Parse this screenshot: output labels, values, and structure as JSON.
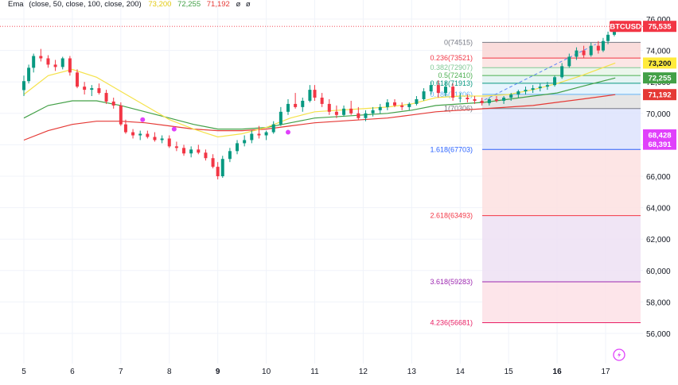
{
  "indicator": {
    "name": "Ema",
    "params": "(close, 50, close, 100, close, 200)",
    "v1": "73,200",
    "v2": "72,255",
    "v3": "71,192",
    "extra1": "ø",
    "extra2": "ø",
    "colors": {
      "ema50": "#f5e24b",
      "ema100": "#43a047",
      "ema200": "#e53935",
      "text": "#131722"
    }
  },
  "chart_data": {
    "type": "candlestick",
    "symbol": "BTCUSD",
    "y_ticks": [
      "76,000",
      "74,000",
      "72,000",
      "70,000",
      "68,000",
      "66,000",
      "64,000",
      "62,000",
      "60,000",
      "58,000",
      "56,000"
    ],
    "x_ticks": [
      "5",
      "6",
      "7",
      "8",
      "9",
      "10",
      "11",
      "12",
      "13",
      "14",
      "15",
      "16",
      "17"
    ],
    "bold_x_ticks": [
      "9",
      "16"
    ],
    "ylim": [
      55000,
      76500
    ],
    "price_tags": [
      {
        "label": "BTCUSD",
        "value": "75,535",
        "bg": "#f23645",
        "price": 75535
      },
      {
        "label": "",
        "value": "73,200",
        "bg": "#ffeb3b",
        "price": 73200,
        "dark": true
      },
      {
        "label": "",
        "value": "72,255",
        "bg": "#43a047",
        "price": 72255
      },
      {
        "label": "",
        "value": "71,192",
        "bg": "#e53935",
        "price": 71192
      },
      {
        "label": "",
        "value": "68,428",
        "bg": "#e040fb",
        "price": 68428
      },
      {
        "label": "",
        "value": "68,391",
        "bg": "#e040fb",
        "price": 68391
      }
    ],
    "fib_levels": [
      {
        "label": "0(74515)",
        "level": 0,
        "price": 74515,
        "color": "#787b86"
      },
      {
        "label": "0.236(73521)",
        "level": 0.236,
        "price": 73521,
        "color": "#f23645"
      },
      {
        "label": "0.382(72907)",
        "level": 0.382,
        "price": 72907,
        "color": "#81c995"
      },
      {
        "label": "0.5(72410)",
        "level": 0.5,
        "price": 72410,
        "color": "#4caf50"
      },
      {
        "label": "0.618(71913)",
        "level": 0.618,
        "price": 71913,
        "color": "#089981"
      },
      {
        "label": "0.786(71206)",
        "level": 0.786,
        "price": 71206,
        "color": "#64b5f6"
      },
      {
        "label": "1(70306)",
        "level": 1,
        "price": 70306,
        "color": "#787b86"
      },
      {
        "label": "1.618(67703)",
        "level": 1.618,
        "price": 67703,
        "color": "#2962ff"
      },
      {
        "label": "2.618(63493)",
        "level": 2.618,
        "price": 63493,
        "color": "#f23645"
      },
      {
        "label": "3.618(59283)",
        "level": 3.618,
        "price": 59283,
        "color": "#9c27b0"
      },
      {
        "label": "4.236(56681)",
        "level": 4.236,
        "price": 56681,
        "color": "#e91e63"
      }
    ],
    "candles": [
      [
        5.0,
        71480,
        72400,
        71100,
        72050
      ],
      [
        5.1,
        72050,
        73100,
        71900,
        72900
      ],
      [
        5.2,
        72900,
        73800,
        72600,
        73650
      ],
      [
        5.35,
        73650,
        74100,
        73300,
        73500
      ],
      [
        5.5,
        73500,
        73700,
        72900,
        73100
      ],
      [
        5.65,
        73100,
        73400,
        72700,
        72950
      ],
      [
        5.8,
        72950,
        73600,
        72800,
        73500
      ],
      [
        5.95,
        73500,
        73650,
        72400,
        72600
      ],
      [
        6.1,
        72600,
        72800,
        71600,
        71700
      ],
      [
        6.25,
        71700,
        72000,
        71200,
        71500
      ],
      [
        6.4,
        71500,
        71800,
        71100,
        71600
      ],
      [
        6.55,
        71600,
        71900,
        71200,
        71300
      ],
      [
        6.7,
        71300,
        71500,
        70600,
        70750
      ],
      [
        6.85,
        70750,
        71000,
        70300,
        70500
      ],
      [
        7.0,
        70500,
        70700,
        69200,
        69300
      ],
      [
        7.1,
        69300,
        69600,
        68700,
        68800
      ],
      [
        7.25,
        68800,
        69000,
        68400,
        68600
      ],
      [
        7.4,
        68600,
        68900,
        68300,
        68700
      ],
      [
        7.55,
        68700,
        68900,
        68400,
        68500
      ],
      [
        7.7,
        68500,
        68800,
        68200,
        68300
      ],
      [
        7.85,
        68300,
        68600,
        68100,
        68400
      ],
      [
        8.0,
        68400,
        68600,
        67800,
        67900
      ],
      [
        8.15,
        67900,
        68200,
        67600,
        67800
      ],
      [
        8.3,
        67800,
        68000,
        67300,
        67450
      ],
      [
        8.45,
        67450,
        67900,
        67200,
        67700
      ],
      [
        8.6,
        67700,
        68000,
        67400,
        67500
      ],
      [
        8.75,
        67500,
        67700,
        67000,
        67150
      ],
      [
        8.9,
        67150,
        67400,
        66500,
        66600
      ],
      [
        9.0,
        66600,
        66900,
        65800,
        66000
      ],
      [
        9.1,
        66000,
        67300,
        65900,
        67100
      ],
      [
        9.25,
        67100,
        67800,
        66900,
        67600
      ],
      [
        9.4,
        67600,
        68300,
        67400,
        68100
      ],
      [
        9.55,
        68100,
        68600,
        67900,
        68300
      ],
      [
        9.7,
        68300,
        68900,
        68100,
        68700
      ],
      [
        9.85,
        68700,
        69200,
        68400,
        68600
      ],
      [
        10.0,
        68600,
        68900,
        68300,
        68800
      ],
      [
        10.15,
        68800,
        69500,
        68700,
        69300
      ],
      [
        10.3,
        69300,
        70400,
        69200,
        70100
      ],
      [
        10.45,
        70100,
        70900,
        69900,
        70600
      ],
      [
        10.6,
        70600,
        71300,
        70300,
        70400
      ],
      [
        10.75,
        70400,
        71000,
        70100,
        70800
      ],
      [
        10.9,
        70800,
        71800,
        70700,
        71500
      ],
      [
        11.0,
        71500,
        71800,
        70800,
        71000
      ],
      [
        11.15,
        71000,
        71300,
        70400,
        70600
      ],
      [
        11.3,
        70600,
        70900,
        69900,
        70100
      ],
      [
        11.45,
        70100,
        70500,
        69700,
        69900
      ],
      [
        11.6,
        69900,
        70500,
        69800,
        70300
      ],
      [
        11.75,
        70300,
        70800,
        69900,
        70000
      ],
      [
        11.9,
        70000,
        70400,
        69600,
        69700
      ],
      [
        12.05,
        69700,
        70200,
        69500,
        70000
      ],
      [
        12.2,
        70000,
        70400,
        69800,
        70200
      ],
      [
        12.35,
        70200,
        70600,
        70000,
        70400
      ],
      [
        12.5,
        70400,
        70900,
        70200,
        70700
      ],
      [
        12.65,
        70700,
        70900,
        70400,
        70500
      ],
      [
        12.8,
        70500,
        70700,
        70200,
        70400
      ],
      [
        12.95,
        70400,
        70700,
        70200,
        70600
      ],
      [
        13.1,
        70600,
        71100,
        70500,
        70900
      ],
      [
        13.25,
        70900,
        71600,
        70800,
        71400
      ],
      [
        13.4,
        71400,
        72000,
        71200,
        71800
      ],
      [
        13.55,
        71800,
        72100,
        71000,
        71300
      ],
      [
        13.7,
        71300,
        72000,
        71100,
        71700
      ],
      [
        13.85,
        71700,
        71900,
        70800,
        71000
      ],
      [
        14.0,
        71000,
        71300,
        70700,
        71000
      ],
      [
        14.15,
        71000,
        71200,
        70700,
        70900
      ],
      [
        14.3,
        70900,
        71100,
        70600,
        70800
      ],
      [
        14.45,
        70800,
        71000,
        70500,
        70650
      ],
      [
        14.6,
        70650,
        71000,
        70500,
        70900
      ],
      [
        14.75,
        70900,
        71100,
        70700,
        70800
      ],
      [
        14.9,
        70800,
        71100,
        70600,
        71000
      ],
      [
        15.05,
        71000,
        71300,
        70800,
        71200
      ],
      [
        15.2,
        71200,
        71500,
        71000,
        71400
      ],
      [
        15.35,
        71400,
        71700,
        71200,
        71500
      ],
      [
        15.5,
        71500,
        71800,
        71300,
        71600
      ],
      [
        15.65,
        71600,
        71900,
        71400,
        71700
      ],
      [
        15.8,
        71700,
        72000,
        71500,
        71800
      ],
      [
        15.95,
        71800,
        72400,
        71700,
        72300
      ],
      [
        16.1,
        72300,
        73200,
        72200,
        73000
      ],
      [
        16.25,
        73000,
        73800,
        72900,
        73600
      ],
      [
        16.4,
        73600,
        74200,
        73400,
        74000
      ],
      [
        16.55,
        74000,
        74300,
        73500,
        73700
      ],
      [
        16.7,
        73700,
        74500,
        73600,
        74300
      ],
      [
        16.85,
        74300,
        74600,
        73800,
        74000
      ],
      [
        16.95,
        74000,
        74800,
        73900,
        74600
      ],
      [
        17.05,
        74600,
        75200,
        74400,
        75000
      ],
      [
        17.18,
        75000,
        75900,
        74900,
        75535
      ]
    ],
    "ema50": [
      [
        5.0,
        71200
      ],
      [
        5.5,
        72400
      ],
      [
        6.0,
        72800
      ],
      [
        6.5,
        72300
      ],
      [
        7.0,
        71400
      ],
      [
        7.5,
        70500
      ],
      [
        8.0,
        69600
      ],
      [
        8.5,
        69000
      ],
      [
        9.0,
        68500
      ],
      [
        9.5,
        68700
      ],
      [
        10.0,
        69100
      ],
      [
        10.5,
        69700
      ],
      [
        11.0,
        70100
      ],
      [
        11.5,
        70200
      ],
      [
        12.0,
        70300
      ],
      [
        12.5,
        70400
      ],
      [
        13.0,
        70600
      ],
      [
        13.5,
        71000
      ],
      [
        14.0,
        71100
      ],
      [
        14.5,
        71100
      ],
      [
        15.0,
        71200
      ],
      [
        15.5,
        71500
      ],
      [
        16.0,
        71900
      ],
      [
        16.5,
        72400
      ],
      [
        17.2,
        73200
      ]
    ],
    "ema100": [
      [
        5.0,
        69700
      ],
      [
        5.5,
        70500
      ],
      [
        6.0,
        70800
      ],
      [
        6.5,
        70800
      ],
      [
        7.0,
        70500
      ],
      [
        7.5,
        70100
      ],
      [
        8.0,
        69700
      ],
      [
        8.5,
        69300
      ],
      [
        9.0,
        69000
      ],
      [
        9.5,
        69000
      ],
      [
        10.0,
        69100
      ],
      [
        10.5,
        69400
      ],
      [
        11.0,
        69700
      ],
      [
        11.5,
        69800
      ],
      [
        12.0,
        69900
      ],
      [
        12.5,
        70000
      ],
      [
        13.0,
        70200
      ],
      [
        13.5,
        70500
      ],
      [
        14.0,
        70600
      ],
      [
        14.5,
        70700
      ],
      [
        15.0,
        70900
      ],
      [
        15.5,
        71100
      ],
      [
        16.0,
        71300
      ],
      [
        16.5,
        71700
      ],
      [
        17.2,
        72255
      ]
    ],
    "ema200": [
      [
        5.0,
        68300
      ],
      [
        5.5,
        68900
      ],
      [
        6.0,
        69300
      ],
      [
        6.5,
        69500
      ],
      [
        7.0,
        69500
      ],
      [
        7.5,
        69400
      ],
      [
        8.0,
        69200
      ],
      [
        8.5,
        69000
      ],
      [
        9.0,
        68900
      ],
      [
        9.5,
        68900
      ],
      [
        10.0,
        69000
      ],
      [
        10.5,
        69200
      ],
      [
        11.0,
        69400
      ],
      [
        11.5,
        69500
      ],
      [
        12.0,
        69600
      ],
      [
        12.5,
        69700
      ],
      [
        13.0,
        69900
      ],
      [
        13.5,
        70100
      ],
      [
        14.0,
        70200
      ],
      [
        14.5,
        70300
      ],
      [
        15.0,
        70400
      ],
      [
        15.5,
        70500
      ],
      [
        16.0,
        70700
      ],
      [
        16.5,
        70900
      ],
      [
        17.2,
        71192
      ]
    ],
    "cross_markers": [
      [
        7.45,
        69600
      ],
      [
        8.1,
        69000
      ],
      [
        10.45,
        68800
      ]
    ],
    "current_price": 75535,
    "grid": true
  }
}
